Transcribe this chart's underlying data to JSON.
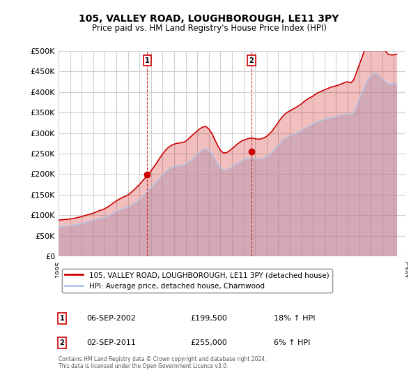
{
  "title": "105, VALLEY ROAD, LOUGHBOROUGH, LE11 3PY",
  "subtitle": "Price paid vs. HM Land Registry's House Price Index (HPI)",
  "legend_line1": "105, VALLEY ROAD, LOUGHBOROUGH, LE11 3PY (detached house)",
  "legend_line2": "HPI: Average price, detached house, Charnwood",
  "annotation1_label": "1",
  "annotation1_date": "06-SEP-2002",
  "annotation1_price": "£199,500",
  "annotation1_hpi": "18% ↑ HPI",
  "annotation1_year": 2002.67,
  "annotation1_value": 199500,
  "annotation2_label": "2",
  "annotation2_date": "02-SEP-2011",
  "annotation2_price": "£255,000",
  "annotation2_hpi": "6% ↑ HPI",
  "annotation2_year": 2011.67,
  "annotation2_value": 255000,
  "hpi_color": "#aec6e8",
  "price_color": "#cc0000",
  "annotation_color": "#cc0000",
  "background_color": "#ffffff",
  "grid_color": "#d0d0d0",
  "ylim": [
    0,
    500000
  ],
  "yticks": [
    0,
    50000,
    100000,
    150000,
    200000,
    250000,
    300000,
    350000,
    400000,
    450000,
    500000
  ],
  "ylabel_format": "£{0}K",
  "note": "Contains HM Land Registry data © Crown copyright and database right 2024.\nThis data is licensed under the Open Government Licence v3.0.",
  "hpi_data": {
    "years": [
      1995.0,
      1995.25,
      1995.5,
      1995.75,
      1996.0,
      1996.25,
      1996.5,
      1996.75,
      1997.0,
      1997.25,
      1997.5,
      1997.75,
      1998.0,
      1998.25,
      1998.5,
      1998.75,
      1999.0,
      1999.25,
      1999.5,
      1999.75,
      2000.0,
      2000.25,
      2000.5,
      2000.75,
      2001.0,
      2001.25,
      2001.5,
      2001.75,
      2002.0,
      2002.25,
      2002.5,
      2002.75,
      2003.0,
      2003.25,
      2003.5,
      2003.75,
      2004.0,
      2004.25,
      2004.5,
      2004.75,
      2005.0,
      2005.25,
      2005.5,
      2005.75,
      2006.0,
      2006.25,
      2006.5,
      2006.75,
      2007.0,
      2007.25,
      2007.5,
      2007.75,
      2008.0,
      2008.25,
      2008.5,
      2008.75,
      2009.0,
      2009.25,
      2009.5,
      2009.75,
      2010.0,
      2010.25,
      2010.5,
      2010.75,
      2011.0,
      2011.25,
      2011.5,
      2011.75,
      2012.0,
      2012.25,
      2012.5,
      2012.75,
      2013.0,
      2013.25,
      2013.5,
      2013.75,
      2014.0,
      2014.25,
      2014.5,
      2014.75,
      2015.0,
      2015.25,
      2015.5,
      2015.75,
      2016.0,
      2016.25,
      2016.5,
      2016.75,
      2017.0,
      2017.25,
      2017.5,
      2017.75,
      2018.0,
      2018.25,
      2018.5,
      2018.75,
      2019.0,
      2019.25,
      2019.5,
      2019.75,
      2020.0,
      2020.25,
      2020.5,
      2020.75,
      2021.0,
      2021.25,
      2021.5,
      2021.75,
      2022.0,
      2022.25,
      2022.5,
      2022.75,
      2023.0,
      2023.25,
      2023.5,
      2023.75,
      2024.0,
      2024.25
    ],
    "values": [
      72000,
      73000,
      73500,
      74000,
      75000,
      76000,
      77000,
      78000,
      80000,
      82000,
      84000,
      86000,
      88000,
      90000,
      92000,
      93000,
      95000,
      98000,
      102000,
      106000,
      110000,
      113000,
      116000,
      118000,
      120000,
      124000,
      128000,
      133000,
      139000,
      146000,
      153000,
      160000,
      167000,
      175000,
      183000,
      191000,
      199000,
      206000,
      212000,
      216000,
      218000,
      220000,
      221000,
      222000,
      225000,
      230000,
      236000,
      242000,
      248000,
      255000,
      260000,
      262000,
      258000,
      250000,
      238000,
      225000,
      215000,
      210000,
      210000,
      213000,
      218000,
      223000,
      228000,
      232000,
      235000,
      237000,
      238000,
      240000,
      238000,
      237000,
      238000,
      240000,
      243000,
      248000,
      255000,
      263000,
      271000,
      279000,
      286000,
      290000,
      293000,
      296000,
      299000,
      302000,
      306000,
      311000,
      315000,
      318000,
      322000,
      326000,
      329000,
      331000,
      333000,
      335000,
      337000,
      339000,
      340000,
      342000,
      344000,
      346000,
      348000,
      345000,
      350000,
      365000,
      382000,
      398000,
      415000,
      430000,
      440000,
      445000,
      445000,
      440000,
      432000,
      425000,
      420000,
      420000,
      420000,
      422000
    ]
  },
  "price_data": {
    "years": [
      1995.0,
      1995.25,
      1995.5,
      1995.75,
      1996.0,
      1996.25,
      1996.5,
      1996.75,
      1997.0,
      1997.25,
      1997.5,
      1997.75,
      1998.0,
      1998.25,
      1998.5,
      1998.75,
      1999.0,
      1999.25,
      1999.5,
      1999.75,
      2000.0,
      2000.25,
      2000.5,
      2000.75,
      2001.0,
      2001.25,
      2001.5,
      2001.75,
      2002.0,
      2002.25,
      2002.5,
      2002.75,
      2003.0,
      2003.25,
      2003.5,
      2003.75,
      2004.0,
      2004.25,
      2004.5,
      2004.75,
      2005.0,
      2005.25,
      2005.5,
      2005.75,
      2006.0,
      2006.25,
      2006.5,
      2006.75,
      2007.0,
      2007.25,
      2007.5,
      2007.75,
      2008.0,
      2008.25,
      2008.5,
      2008.75,
      2009.0,
      2009.25,
      2009.5,
      2009.75,
      2010.0,
      2010.25,
      2010.5,
      2010.75,
      2011.0,
      2011.25,
      2011.5,
      2011.75,
      2012.0,
      2012.25,
      2012.5,
      2012.75,
      2013.0,
      2013.25,
      2013.5,
      2013.75,
      2014.0,
      2014.25,
      2014.5,
      2014.75,
      2015.0,
      2015.25,
      2015.5,
      2015.75,
      2016.0,
      2016.25,
      2016.5,
      2016.75,
      2017.0,
      2017.25,
      2017.5,
      2017.75,
      2018.0,
      2018.25,
      2018.5,
      2018.75,
      2019.0,
      2019.25,
      2019.5,
      2019.75,
      2020.0,
      2020.25,
      2020.5,
      2020.75,
      2021.0,
      2021.25,
      2021.5,
      2021.75,
      2022.0,
      2022.25,
      2022.5,
      2022.75,
      2023.0,
      2023.25,
      2023.5,
      2023.75,
      2024.0,
      2024.25
    ],
    "values": [
      88000,
      89000,
      89500,
      90000,
      91000,
      92000,
      93500,
      95000,
      97000,
      99000,
      101000,
      103000,
      105000,
      108000,
      111000,
      113000,
      116000,
      120000,
      125000,
      130000,
      135000,
      139000,
      143000,
      146000,
      149000,
      155000,
      161000,
      168000,
      175000,
      183000,
      191000,
      199000,
      208000,
      218000,
      228000,
      239000,
      249000,
      258000,
      265000,
      270000,
      273000,
      275000,
      276000,
      277000,
      280000,
      286000,
      293000,
      299000,
      305000,
      311000,
      315000,
      316000,
      310000,
      300000,
      285000,
      270000,
      258000,
      252000,
      252000,
      256000,
      262000,
      268000,
      274000,
      279000,
      283000,
      285000,
      287000,
      288000,
      286000,
      285000,
      286000,
      288000,
      292000,
      298000,
      306000,
      316000,
      326000,
      336000,
      344000,
      350000,
      354000,
      358000,
      362000,
      366000,
      371000,
      377000,
      382000,
      386000,
      390000,
      395000,
      399000,
      402000,
      405000,
      408000,
      411000,
      413000,
      415000,
      417000,
      420000,
      423000,
      425000,
      422000,
      428000,
      446000,
      466000,
      484000,
      505000,
      522000,
      530000,
      533000,
      528000,
      520000,
      510000,
      500000,
      492000,
      490000,
      490000,
      492000
    ]
  }
}
